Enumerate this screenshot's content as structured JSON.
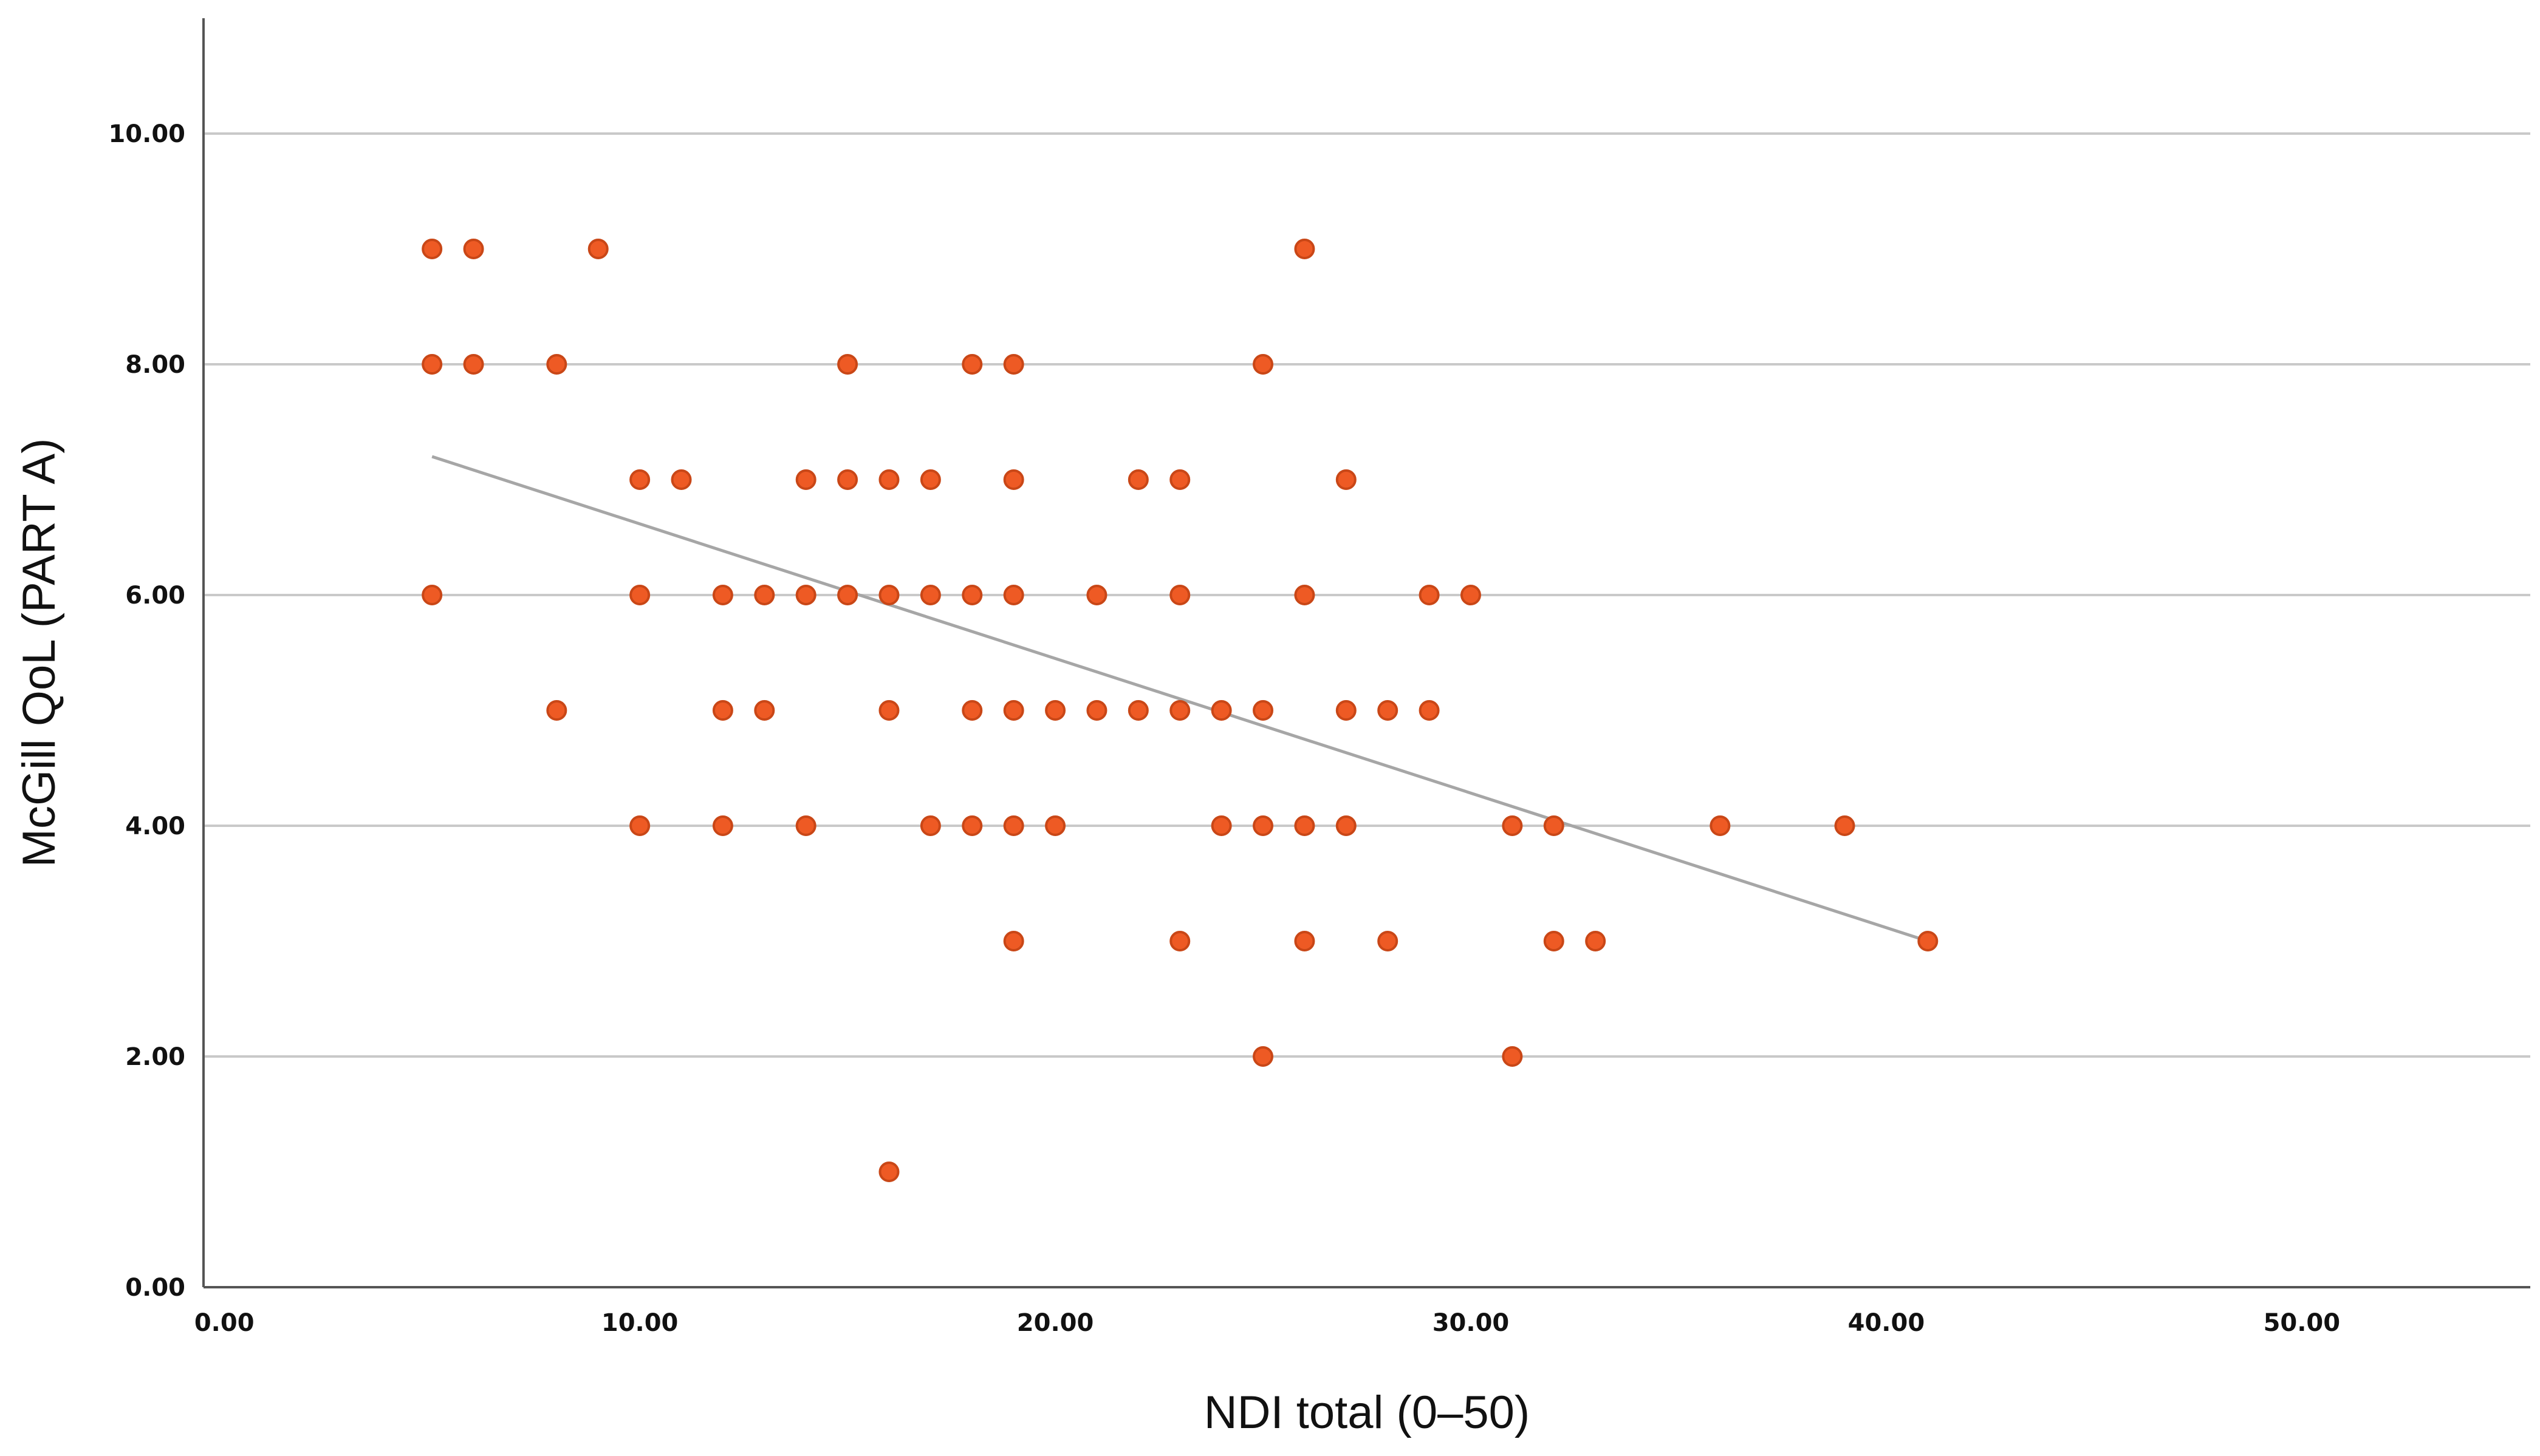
{
  "chart_data": {
    "type": "scatter",
    "title": "",
    "xlabel": "NDI total (0–50)",
    "ylabel": "McGill QoL (PART A)",
    "xlim": [
      -0.5,
      55.5
    ],
    "ylim": [
      0,
      11
    ],
    "x_ticks": [
      0,
      10,
      20,
      30,
      40,
      50
    ],
    "x_tick_labels": [
      "0.00",
      "10.00",
      "20.00",
      "30.00",
      "40.00",
      "50.00"
    ],
    "y_ticks": [
      0,
      2,
      4,
      6,
      8,
      10
    ],
    "y_tick_labels": [
      "0.00",
      "2.00",
      "4.00",
      "6.00",
      "8.00",
      "10.00"
    ],
    "grid": "horizontal",
    "legend": "none",
    "colors": {
      "point": "#ee5a24",
      "point_stroke": "#c94717",
      "fit_line": "#a6a6a6",
      "grid": "#c9c9c9",
      "axis": "#555555"
    },
    "points": [
      [
        5,
        9
      ],
      [
        6,
        9
      ],
      [
        9,
        9
      ],
      [
        26,
        9
      ],
      [
        5,
        8
      ],
      [
        6,
        8
      ],
      [
        8,
        8
      ],
      [
        15,
        8
      ],
      [
        18,
        8
      ],
      [
        19,
        8
      ],
      [
        25,
        8
      ],
      [
        10,
        7
      ],
      [
        11,
        7
      ],
      [
        14,
        7
      ],
      [
        15,
        7
      ],
      [
        16,
        7
      ],
      [
        17,
        7
      ],
      [
        19,
        7
      ],
      [
        22,
        7
      ],
      [
        23,
        7
      ],
      [
        27,
        7
      ],
      [
        5,
        6
      ],
      [
        10,
        6
      ],
      [
        12,
        6
      ],
      [
        13,
        6
      ],
      [
        14,
        6
      ],
      [
        15,
        6
      ],
      [
        16,
        6
      ],
      [
        17,
        6
      ],
      [
        18,
        6
      ],
      [
        19,
        6
      ],
      [
        21,
        6
      ],
      [
        23,
        6
      ],
      [
        26,
        6
      ],
      [
        29,
        6
      ],
      [
        30,
        6
      ],
      [
        8,
        5
      ],
      [
        12,
        5
      ],
      [
        13,
        5
      ],
      [
        16,
        5
      ],
      [
        18,
        5
      ],
      [
        19,
        5
      ],
      [
        20,
        5
      ],
      [
        21,
        5
      ],
      [
        22,
        5
      ],
      [
        23,
        5
      ],
      [
        24,
        5
      ],
      [
        25,
        5
      ],
      [
        27,
        5
      ],
      [
        28,
        5
      ],
      [
        29,
        5
      ],
      [
        10,
        4
      ],
      [
        12,
        4
      ],
      [
        14,
        4
      ],
      [
        17,
        4
      ],
      [
        18,
        4
      ],
      [
        19,
        4
      ],
      [
        20,
        4
      ],
      [
        24,
        4
      ],
      [
        25,
        4
      ],
      [
        26,
        4
      ],
      [
        27,
        4
      ],
      [
        31,
        4
      ],
      [
        32,
        4
      ],
      [
        36,
        4
      ],
      [
        39,
        4
      ],
      [
        19,
        3
      ],
      [
        23,
        3
      ],
      [
        26,
        3
      ],
      [
        28,
        3
      ],
      [
        32,
        3
      ],
      [
        33,
        3
      ],
      [
        41,
        3
      ],
      [
        25,
        2
      ],
      [
        31,
        2
      ],
      [
        16,
        1
      ]
    ],
    "fit_line": {
      "x": [
        5,
        41
      ],
      "y": [
        7.2,
        3.0
      ]
    }
  }
}
